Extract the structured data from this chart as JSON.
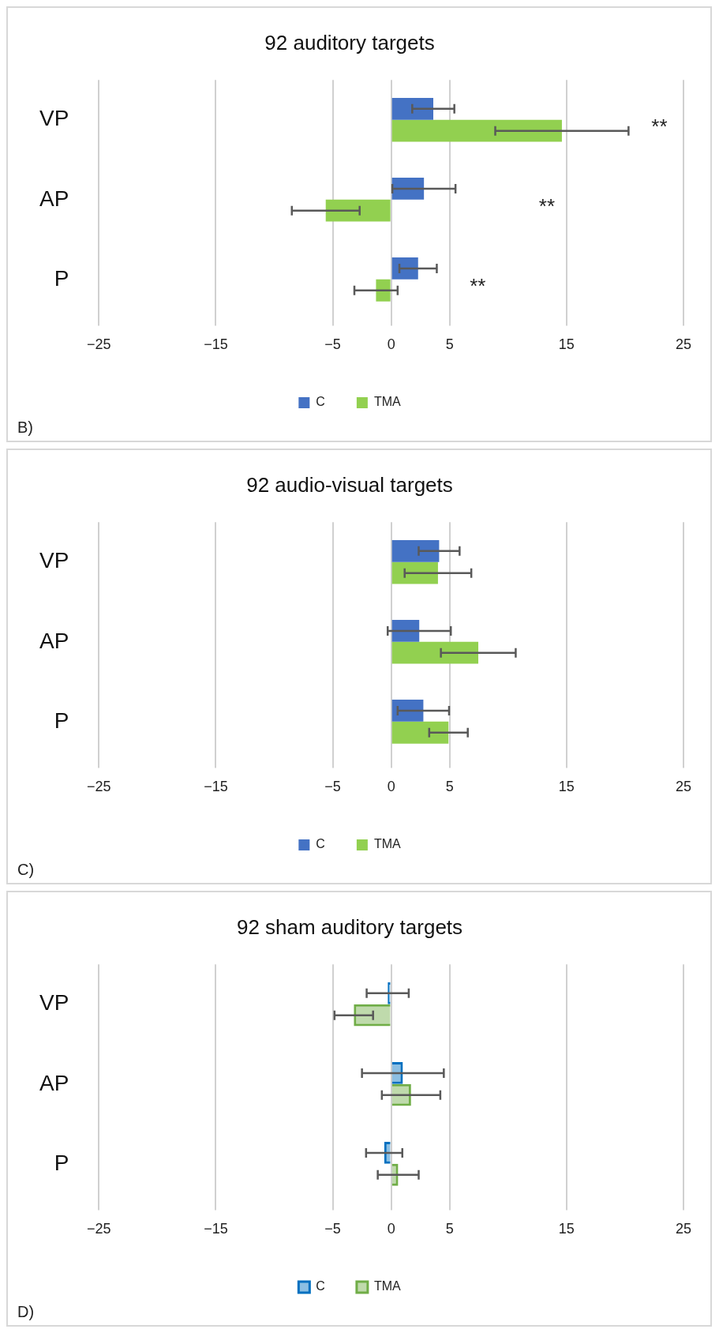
{
  "chart_data": [
    {
      "type": "bar",
      "orientation": "horizontal",
      "title": "92 auditory targets",
      "categories": [
        "VP",
        "AP",
        "P"
      ],
      "series": [
        {
          "name": "C",
          "color": "#4472c4",
          "values": [
            3.6,
            2.8,
            2.3
          ],
          "errors": [
            1.8,
            2.7,
            1.6
          ]
        },
        {
          "name": "TMA",
          "color": "#92d050",
          "values": [
            14.6,
            -5.6,
            -1.3
          ],
          "errors": [
            5.7,
            2.9,
            1.85
          ]
        }
      ],
      "xlim": [
        -25,
        25
      ],
      "xticks": [
        -25,
        -15,
        -5,
        0,
        5,
        15,
        25
      ],
      "grid": "x",
      "legend": "bottom",
      "annotations": [
        "**",
        "**",
        "**",
        "B)"
      ]
    },
    {
      "type": "bar",
      "orientation": "horizontal",
      "title": "92 audio-visual targets",
      "categories": [
        "VP",
        "AP",
        "P"
      ],
      "series": [
        {
          "name": "C",
          "color": "#4472c4",
          "values": [
            4.1,
            2.4,
            2.75
          ],
          "errors": [
            1.75,
            2.7,
            2.2
          ]
        },
        {
          "name": "TMA",
          "color": "#92d050",
          "values": [
            4.0,
            7.45,
            4.9
          ],
          "errors": [
            2.85,
            3.2,
            1.65
          ]
        }
      ],
      "xlim": [
        -25,
        25
      ],
      "xticks": [
        -25,
        -15,
        -5,
        0,
        5,
        15,
        25
      ],
      "grid": "x",
      "legend": "bottom",
      "annotations": [
        "C)"
      ]
    },
    {
      "type": "bar",
      "orientation": "horizontal",
      "title": "92 sham auditory targets",
      "categories": [
        "VP",
        "AP",
        "P"
      ],
      "series": [
        {
          "name": "C",
          "color": "#0070c0",
          "values": [
            -0.3,
            1.0,
            -0.6
          ],
          "errors": [
            1.8,
            3.5,
            1.55
          ]
        },
        {
          "name": "TMA",
          "color": "#70ad47",
          "values": [
            -3.2,
            1.7,
            0.6
          ],
          "errors": [
            1.65,
            2.5,
            1.75
          ]
        }
      ],
      "xlim": [
        -25,
        25
      ],
      "xticks": [
        -25,
        -15,
        -5,
        0,
        5,
        15,
        25
      ],
      "grid": "x",
      "legend": "bottom",
      "annotations": [
        "D)"
      ]
    }
  ]
}
